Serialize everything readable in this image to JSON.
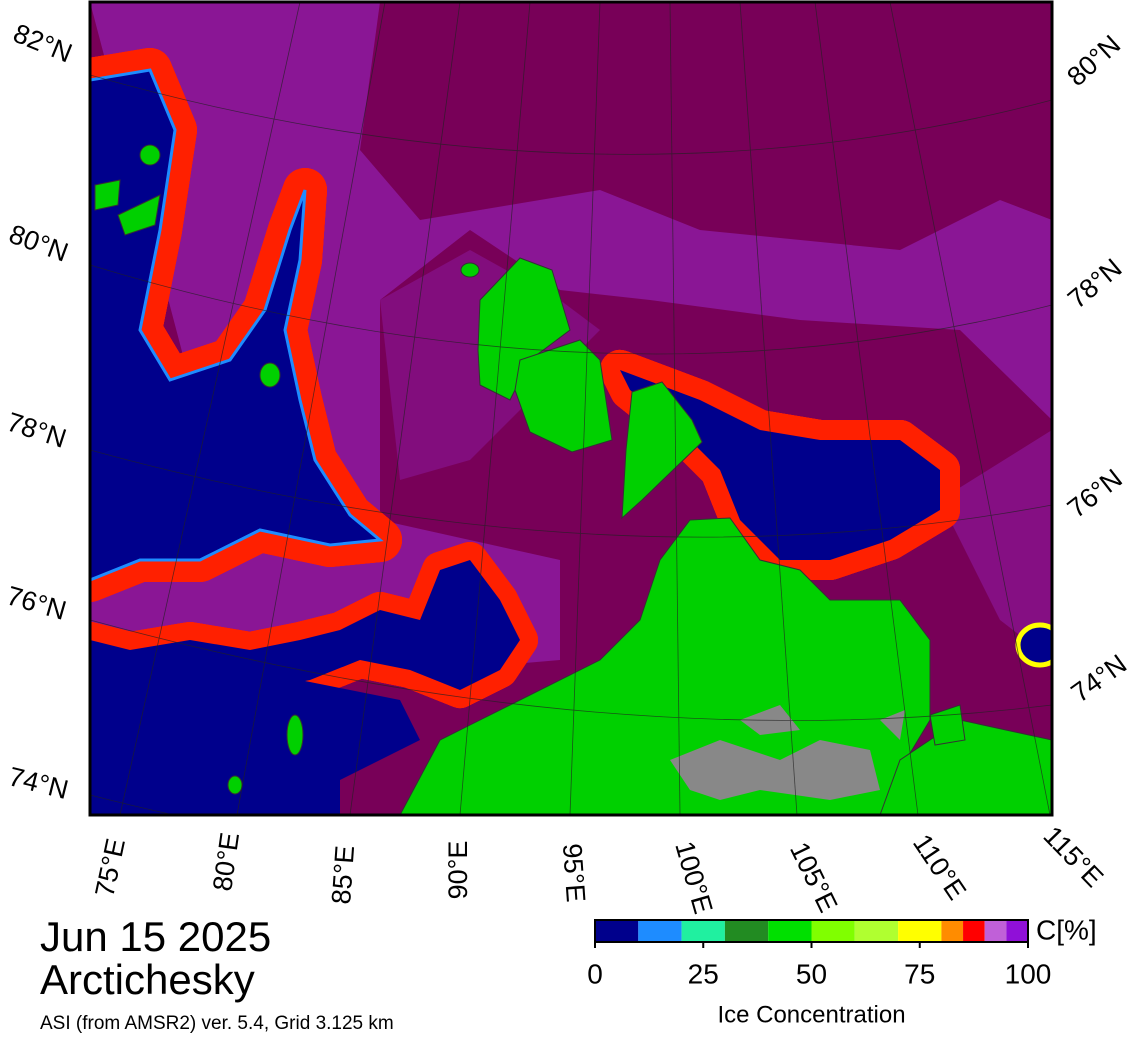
{
  "map": {
    "date": "Jun 15 2025",
    "region": "Arctichesky",
    "source": "ASI (from AMSR2) ver. 5.4,  Grid 3.125 km",
    "lat_labels_left": [
      "82°N",
      "80°N",
      "78°N",
      "76°N",
      "74°N"
    ],
    "lat_labels_right": [
      "80°N",
      "78°N",
      "76°N",
      "74°N"
    ],
    "lon_labels": [
      "75°E",
      "80°E",
      "85°E",
      "90°E",
      "95°E",
      "100°E",
      "105°E",
      "110°E",
      "115°E"
    ]
  },
  "colorbar": {
    "title": "Ice Concentration",
    "unit": "C[%]",
    "lim": [
      0,
      100
    ],
    "ticks": [
      0,
      25,
      50,
      75,
      100
    ],
    "bins": [
      0,
      10,
      20,
      30,
      40,
      50,
      60,
      70,
      80,
      85,
      90,
      95,
      100
    ],
    "colors": [
      "#00008c",
      "#1e8cff",
      "#20f0a0",
      "#228b22",
      "#00e000",
      "#80ff00",
      "#b0ff30",
      "#ffff00",
      "#ff8c00",
      "#ff0000",
      "#c060d8",
      "#9010d8"
    ]
  }
}
